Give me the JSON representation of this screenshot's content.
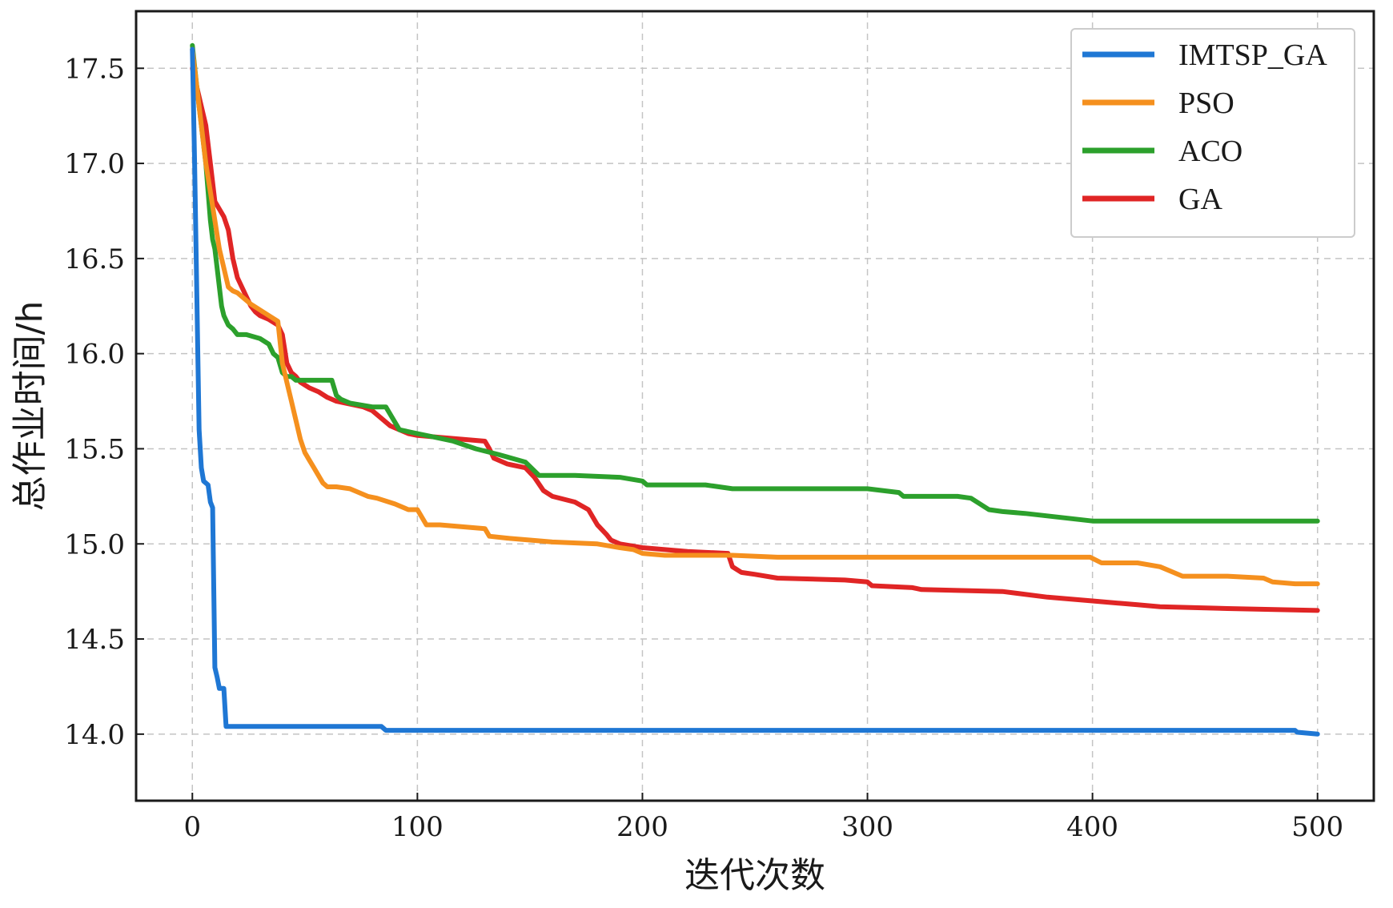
{
  "chart_data": {
    "type": "line",
    "xlabel": "迭代次数",
    "ylabel": "总作业时间/h",
    "xlim": [
      -25,
      525
    ],
    "ylim": [
      13.65,
      17.8
    ],
    "xticks": [
      0,
      100,
      200,
      300,
      400,
      500
    ],
    "yticks": [
      14.0,
      14.5,
      15.0,
      15.5,
      16.0,
      16.5,
      17.0,
      17.5
    ],
    "xtick_labels": [
      "0",
      "100",
      "200",
      "300",
      "400",
      "500"
    ],
    "ytick_labels": [
      "14.0",
      "14.5",
      "15.0",
      "15.5",
      "16.0",
      "16.5",
      "17.0",
      "17.5"
    ],
    "grid": true,
    "legend_position": "top-right",
    "series": [
      {
        "name": "IMTSP_GA",
        "color": "#1f77d4",
        "x": [
          0,
          1,
          2,
          3,
          4,
          5,
          7,
          8,
          9,
          10,
          11,
          12,
          14,
          15,
          16,
          84,
          85,
          86,
          490,
          491,
          500
        ],
        "y": [
          17.6,
          17.0,
          16.3,
          15.6,
          15.4,
          15.33,
          15.31,
          15.22,
          15.19,
          14.35,
          14.3,
          14.24,
          14.24,
          14.04,
          14.04,
          14.04,
          14.03,
          14.02,
          14.02,
          14.01,
          14.0
        ]
      },
      {
        "name": "PSO",
        "color": "#f5901e",
        "x": [
          0,
          2,
          4,
          6,
          8,
          10,
          12,
          14,
          16,
          18,
          20,
          22,
          26,
          30,
          34,
          38,
          40,
          42,
          44,
          46,
          48,
          50,
          52,
          54,
          56,
          58,
          60,
          62,
          64,
          70,
          74,
          78,
          82,
          90,
          96,
          100,
          104,
          110,
          120,
          130,
          132,
          140,
          150,
          160,
          180,
          190,
          196,
          200,
          210,
          220,
          240,
          260,
          300,
          350,
          399,
          404,
          420,
          430,
          436,
          440,
          460,
          476,
          480,
          490,
          500
        ],
        "y": [
          17.6,
          17.4,
          17.2,
          17.0,
          16.85,
          16.7,
          16.55,
          16.45,
          16.35,
          16.33,
          16.32,
          16.3,
          16.26,
          16.23,
          16.2,
          16.17,
          15.95,
          15.85,
          15.75,
          15.65,
          15.55,
          15.48,
          15.44,
          15.4,
          15.36,
          15.32,
          15.3,
          15.3,
          15.3,
          15.29,
          15.27,
          15.25,
          15.24,
          15.21,
          15.18,
          15.18,
          15.1,
          15.1,
          15.09,
          15.08,
          15.04,
          15.03,
          15.02,
          15.01,
          15.0,
          14.98,
          14.97,
          14.95,
          14.94,
          14.94,
          14.94,
          14.93,
          14.93,
          14.93,
          14.93,
          14.9,
          14.9,
          14.88,
          14.85,
          14.83,
          14.83,
          14.82,
          14.8,
          14.79,
          14.79
        ]
      },
      {
        "name": "ACO",
        "color": "#2ca02c",
        "x": [
          0,
          2,
          4,
          6,
          8,
          9,
          10,
          11,
          12,
          13,
          14,
          16,
          18,
          20,
          24,
          30,
          34,
          36,
          38,
          40,
          42,
          44,
          46,
          50,
          56,
          62,
          64,
          66,
          70,
          80,
          86,
          92,
          100,
          108,
          116,
          126,
          136,
          148,
          154,
          170,
          190,
          200,
          202,
          220,
          228,
          240,
          300,
          314,
          316,
          340,
          346,
          350,
          354,
          360,
          370,
          400,
          500
        ],
        "y": [
          17.62,
          17.4,
          17.2,
          17.0,
          16.7,
          16.6,
          16.55,
          16.45,
          16.35,
          16.25,
          16.2,
          16.15,
          16.13,
          16.1,
          16.1,
          16.08,
          16.05,
          16.0,
          15.98,
          15.9,
          15.88,
          15.88,
          15.86,
          15.86,
          15.86,
          15.86,
          15.78,
          15.76,
          15.74,
          15.72,
          15.72,
          15.6,
          15.58,
          15.56,
          15.54,
          15.5,
          15.47,
          15.43,
          15.36,
          15.36,
          15.35,
          15.33,
          15.31,
          15.31,
          15.31,
          15.29,
          15.29,
          15.27,
          15.25,
          15.25,
          15.24,
          15.21,
          15.18,
          15.17,
          15.16,
          15.12,
          15.12
        ]
      },
      {
        "name": "GA",
        "color": "#e02525",
        "x": [
          0,
          2,
          4,
          6,
          8,
          10,
          12,
          14,
          16,
          18,
          20,
          22,
          24,
          26,
          28,
          30,
          34,
          38,
          40,
          42,
          44,
          46,
          48,
          52,
          56,
          60,
          64,
          68,
          72,
          76,
          80,
          84,
          88,
          92,
          96,
          100,
          110,
          120,
          130,
          132,
          134,
          140,
          148,
          152,
          156,
          160,
          170,
          176,
          180,
          184,
          186,
          190,
          200,
          210,
          220,
          238,
          240,
          244,
          250,
          260,
          290,
          300,
          302,
          320,
          324,
          360,
          380,
          400,
          420,
          430,
          460,
          500
        ],
        "y": [
          17.5,
          17.4,
          17.3,
          17.2,
          17.0,
          16.8,
          16.76,
          16.72,
          16.65,
          16.5,
          16.4,
          16.35,
          16.3,
          16.25,
          16.22,
          16.2,
          16.18,
          16.15,
          16.1,
          15.95,
          15.9,
          15.88,
          15.85,
          15.82,
          15.8,
          15.77,
          15.75,
          15.74,
          15.73,
          15.72,
          15.7,
          15.66,
          15.62,
          15.6,
          15.58,
          15.57,
          15.56,
          15.55,
          15.54,
          15.5,
          15.45,
          15.42,
          15.4,
          15.35,
          15.28,
          15.25,
          15.22,
          15.18,
          15.1,
          15.05,
          15.02,
          15.0,
          14.98,
          14.97,
          14.96,
          14.95,
          14.88,
          14.85,
          14.84,
          14.82,
          14.81,
          14.8,
          14.78,
          14.77,
          14.76,
          14.75,
          14.72,
          14.7,
          14.68,
          14.67,
          14.66,
          14.65
        ]
      }
    ]
  }
}
